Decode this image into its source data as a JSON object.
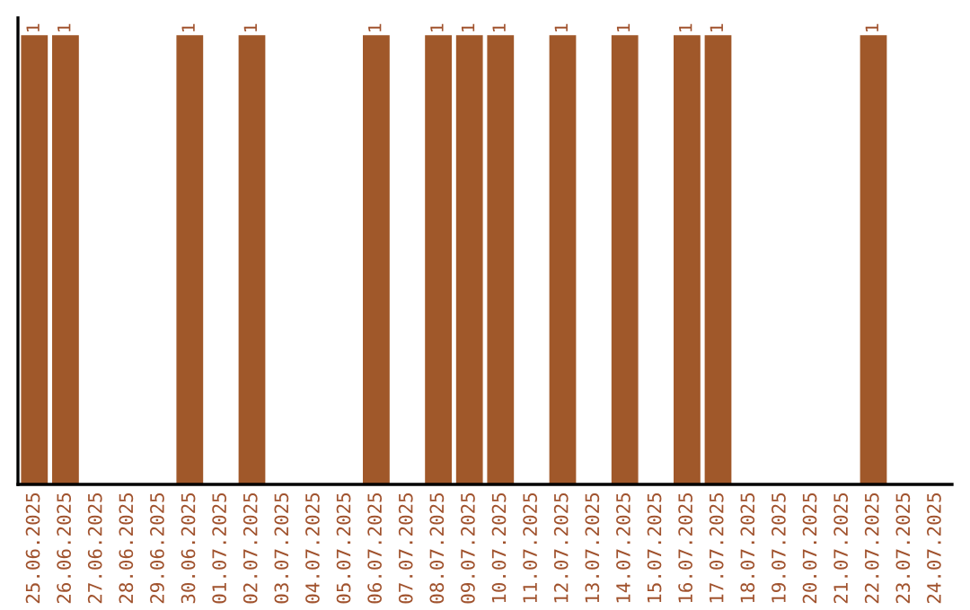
{
  "chart_data": {
    "type": "bar",
    "categories": [
      "25.06.2025",
      "26.06.2025",
      "27.06.2025",
      "28.06.2025",
      "29.06.2025",
      "30.06.2025",
      "01.07.2025",
      "02.07.2025",
      "03.07.2025",
      "04.07.2025",
      "05.07.2025",
      "06.07.2025",
      "07.07.2025",
      "08.07.2025",
      "09.07.2025",
      "10.07.2025",
      "11.07.2025",
      "12.07.2025",
      "13.07.2025",
      "14.07.2025",
      "15.07.2025",
      "16.07.2025",
      "17.07.2025",
      "18.07.2025",
      "19.07.2025",
      "20.07.2025",
      "21.07.2025",
      "22.07.2025",
      "23.07.2025",
      "24.07.2025"
    ],
    "values": [
      1,
      1,
      0,
      0,
      0,
      1,
      0,
      1,
      0,
      0,
      0,
      1,
      0,
      1,
      1,
      1,
      0,
      1,
      0,
      1,
      0,
      1,
      1,
      0,
      0,
      0,
      0,
      1,
      0,
      0
    ],
    "value_labels": [
      "1",
      "1",
      null,
      null,
      null,
      "1",
      null,
      "1",
      null,
      null,
      null,
      "1",
      null,
      "1",
      "1",
      "1",
      null,
      "1",
      null,
      "1",
      null,
      "1",
      "1",
      null,
      null,
      null,
      null,
      "1",
      null,
      null
    ],
    "color": "#a0582a",
    "grid": false,
    "legend": false
  }
}
